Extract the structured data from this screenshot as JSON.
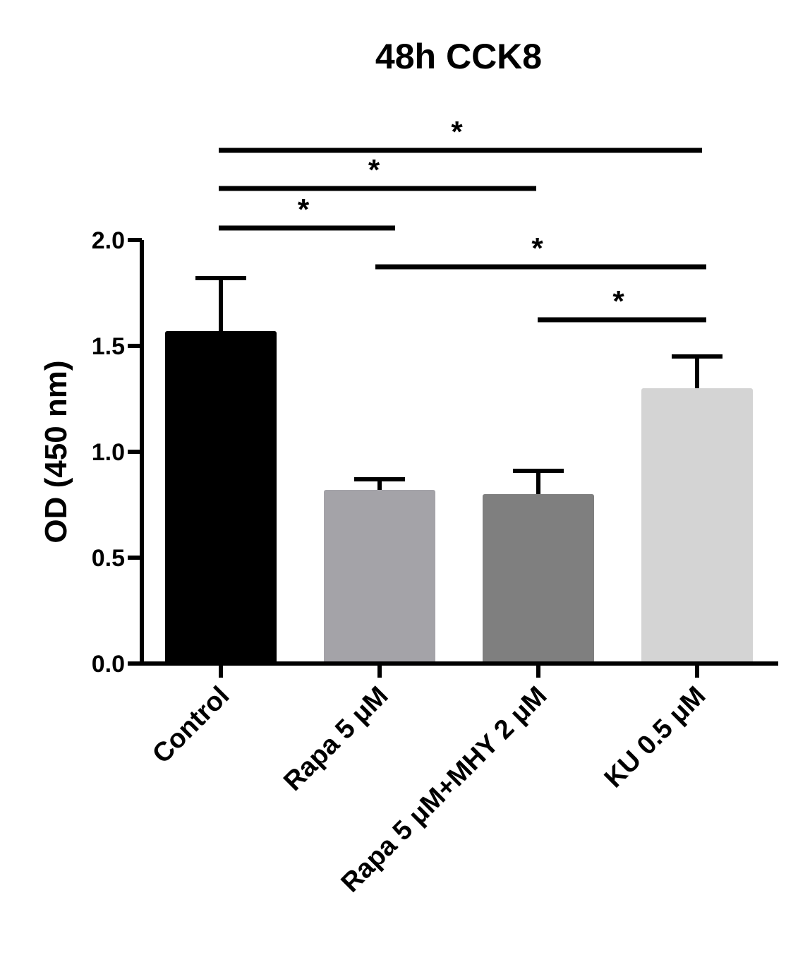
{
  "chart_data": {
    "type": "bar",
    "title": "48h CCK8",
    "xlabel": "",
    "ylabel": "OD (450 nm)",
    "ylim": [
      0,
      2.0
    ],
    "yticks": [
      0.0,
      0.5,
      1.0,
      1.5,
      2.0
    ],
    "ytick_labels": [
      "0.0",
      "0.5",
      "1.0",
      "1.5",
      "2.0"
    ],
    "categories": [
      "Control",
      "Rapa 5 μM",
      "Rapa 5 μM+MHY 2 μM",
      "KU 0.5 μM"
    ],
    "values": [
      1.57,
      0.82,
      0.8,
      1.3
    ],
    "errors": [
      0.25,
      0.05,
      0.11,
      0.15
    ],
    "colors": [
      "#000000",
      "#a4a3a8",
      "#7f7f7f",
      "#d4d4d4"
    ],
    "significance": [
      {
        "from": 0,
        "to": 1,
        "label": "*"
      },
      {
        "from": 0,
        "to": 2,
        "label": "*"
      },
      {
        "from": 0,
        "to": 3,
        "label": "*"
      },
      {
        "from": 1,
        "to": 3,
        "label": "*"
      },
      {
        "from": 2,
        "to": 3,
        "label": "*"
      }
    ],
    "grid": false
  }
}
